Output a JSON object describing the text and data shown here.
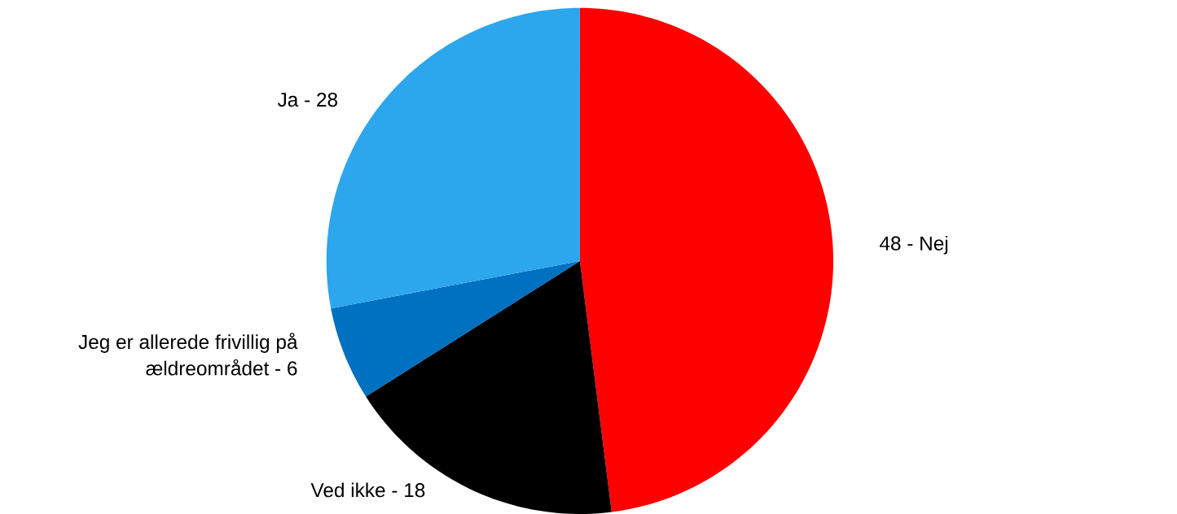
{
  "chart_data": {
    "type": "pie",
    "categories": [
      "48 - Nej",
      "Ved ikke - 18",
      "Jeg er allerede frivillig på ældreområdet - 6",
      "Ja - 28"
    ],
    "values": [
      48,
      18,
      6,
      28
    ],
    "colors": [
      "#ff0000",
      "#000000",
      "#0070c0",
      "#2ca6ec"
    ]
  }
}
